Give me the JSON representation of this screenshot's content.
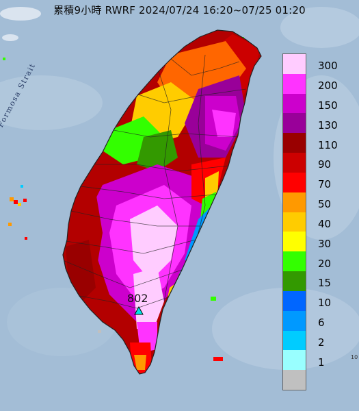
{
  "title": "累積9小時 RWRF 2024/07/24 16:20~07/25 01:20",
  "strait_label": "Formosa Strait",
  "peak": {
    "value": "802"
  },
  "corner_label": "10",
  "legend": [
    {
      "label": "300",
      "color": "#ffccff"
    },
    {
      "label": "200",
      "color": "#ff33ff"
    },
    {
      "label": "150",
      "color": "#cc00cc"
    },
    {
      "label": "130",
      "color": "#990099"
    },
    {
      "label": "110",
      "color": "#990000"
    },
    {
      "label": "90",
      "color": "#cc0000"
    },
    {
      "label": "70",
      "color": "#ff0000"
    },
    {
      "label": "50",
      "color": "#ff9900"
    },
    {
      "label": "40",
      "color": "#ffcc00"
    },
    {
      "label": "30",
      "color": "#ffff00"
    },
    {
      "label": "20",
      "color": "#33ff00"
    },
    {
      "label": "15",
      "color": "#339900"
    },
    {
      "label": "10",
      "color": "#0066ff"
    },
    {
      "label": "6",
      "color": "#0099ff"
    },
    {
      "label": "2",
      "color": "#00ccff"
    },
    {
      "label": "1",
      "color": "#99ffff"
    },
    {
      "label": "",
      "color": "#c0c0c0"
    }
  ]
}
